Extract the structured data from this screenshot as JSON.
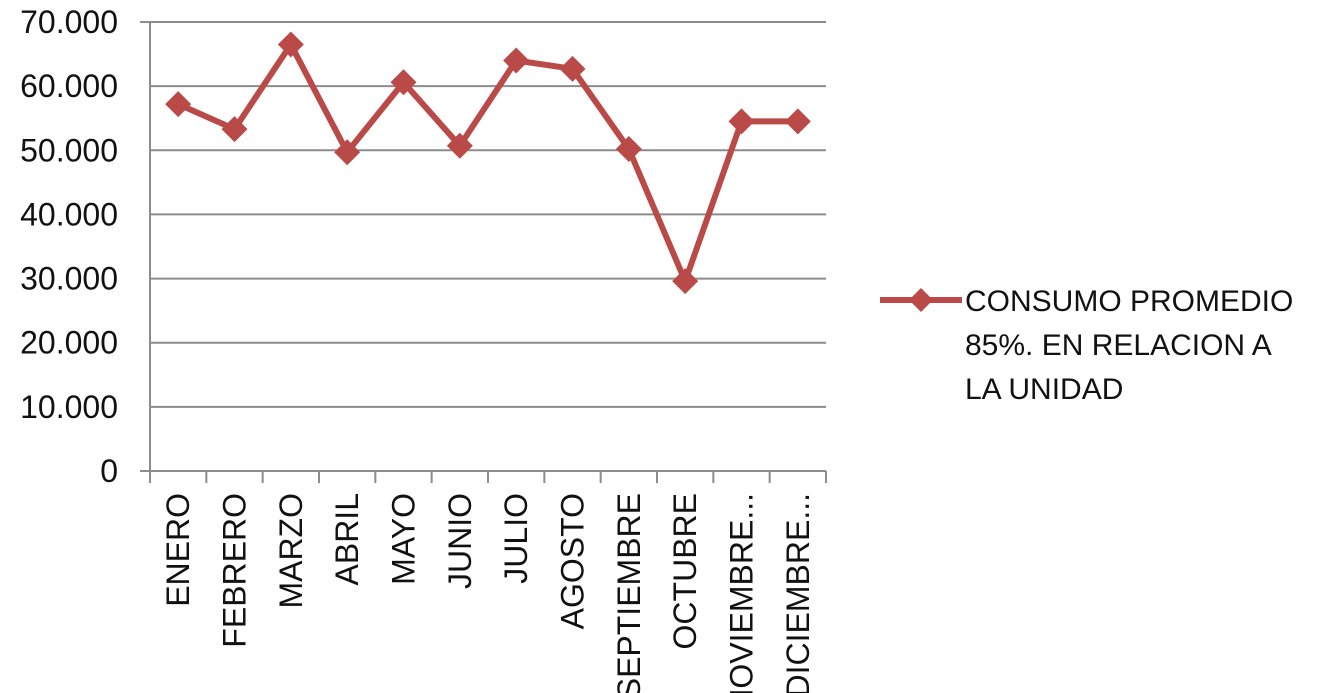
{
  "chart_data": {
    "type": "line",
    "categories": [
      "ENERO",
      "FEBRERO",
      "MARZO",
      "ABRIL",
      "MAYO",
      "JUNIO",
      "JULIO",
      "AGOSTO",
      "SEPTIEMBRE",
      "OCTUBRE",
      "NOVIEMBRE...",
      "DICIEMBRE..."
    ],
    "series": [
      {
        "name": "CONSUMO PROMEDIO 85%. EN RELACION A LA UNIDAD",
        "values": [
          57200,
          53300,
          66500,
          49700,
          60600,
          50700,
          64000,
          62700,
          50200,
          29600,
          54500,
          54500
        ],
        "color": "#b94a48",
        "marker": "diamond"
      }
    ],
    "y_ticks": [
      "0",
      "10.000",
      "20.000",
      "30.000",
      "40.000",
      "50.000",
      "60.000",
      "70.000"
    ],
    "ylim": [
      0,
      70000
    ],
    "grid": true,
    "legend_position": "right",
    "legend_lines": [
      "CONSUMO PROMEDIO",
      "85%. EN RELACION A",
      "LA UNIDAD"
    ],
    "title": "",
    "xlabel": "",
    "ylabel": ""
  }
}
